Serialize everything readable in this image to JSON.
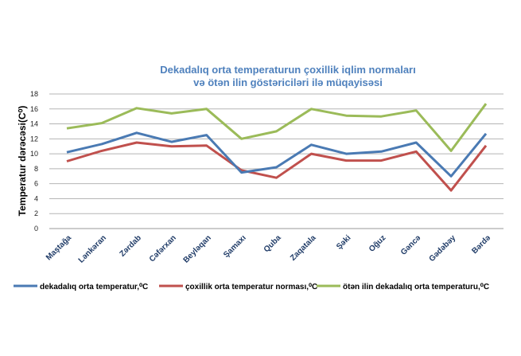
{
  "chart_data": {
    "type": "line",
    "title_lines": [
      "Dekadalıq orta temperaturun çoxillik iqlim normaları",
      "və ötən ilin göstəriciləri ilə müqayisəsi"
    ],
    "ylabel": "Temperatur dərəcəsi(C⁰)",
    "xlabel": "",
    "ylim": [
      0,
      18
    ],
    "yticks": [
      0,
      2,
      4,
      6,
      8,
      10,
      12,
      14,
      16,
      18
    ],
    "grid": true,
    "legend_position": "bottom",
    "categories": [
      "Maştağa",
      "Lənkəran",
      "Zərdab",
      "Cəfərxan",
      "Beyləqan",
      "Şamaxı",
      "Quba",
      "Zaqatala",
      "Şəki",
      "Oğuz",
      "Gəncə",
      "Gədəbəy",
      "Bərdə"
    ],
    "series": [
      {
        "name": "dekadalıq orta temperatur,⁰C",
        "color": "#4a7ab3",
        "values": [
          10.2,
          11.3,
          12.8,
          11.6,
          12.5,
          7.5,
          8.2,
          11.2,
          10.0,
          10.3,
          11.5,
          7.0,
          12.7
        ]
      },
      {
        "name": "çoxillik orta temperatur norması,⁰C",
        "color": "#c0504d",
        "values": [
          9.0,
          10.4,
          11.5,
          11.0,
          11.1,
          7.8,
          6.8,
          10.0,
          9.1,
          9.1,
          10.3,
          5.1,
          11.1
        ]
      },
      {
        "name": "ötən ilin dekadalıq orta temperaturu,⁰C",
        "color": "#9bbb59",
        "values": [
          13.4,
          14.1,
          16.1,
          15.4,
          16.0,
          12.0,
          13.0,
          16.0,
          15.1,
          15.0,
          15.8,
          10.4,
          16.7
        ]
      }
    ],
    "title_color": "#4f81bd"
  }
}
